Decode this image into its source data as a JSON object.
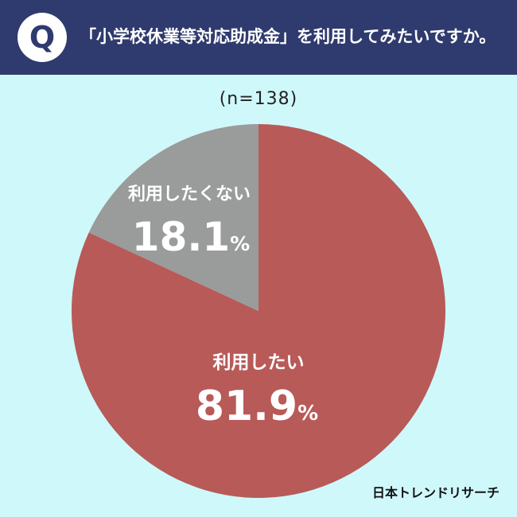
{
  "header": {
    "badge_letter": "Q",
    "question": "「小学校休業等対応助成金」を利用してみたいですか。"
  },
  "chart_data": {
    "type": "pie",
    "sample_size": "(n=138)",
    "start_angle_deg": 0,
    "direction": "clockwise",
    "slices": [
      {
        "label": "利用したい",
        "value": 81.9,
        "value_text": "81.9",
        "unit": "%",
        "color": "#b85a58"
      },
      {
        "label": "利用したくない",
        "value": 18.1,
        "value_text": "18.1",
        "unit": "%",
        "color": "#9a9b9b"
      }
    ]
  },
  "footer": {
    "brand": "日本トレンドリサーチ"
  }
}
